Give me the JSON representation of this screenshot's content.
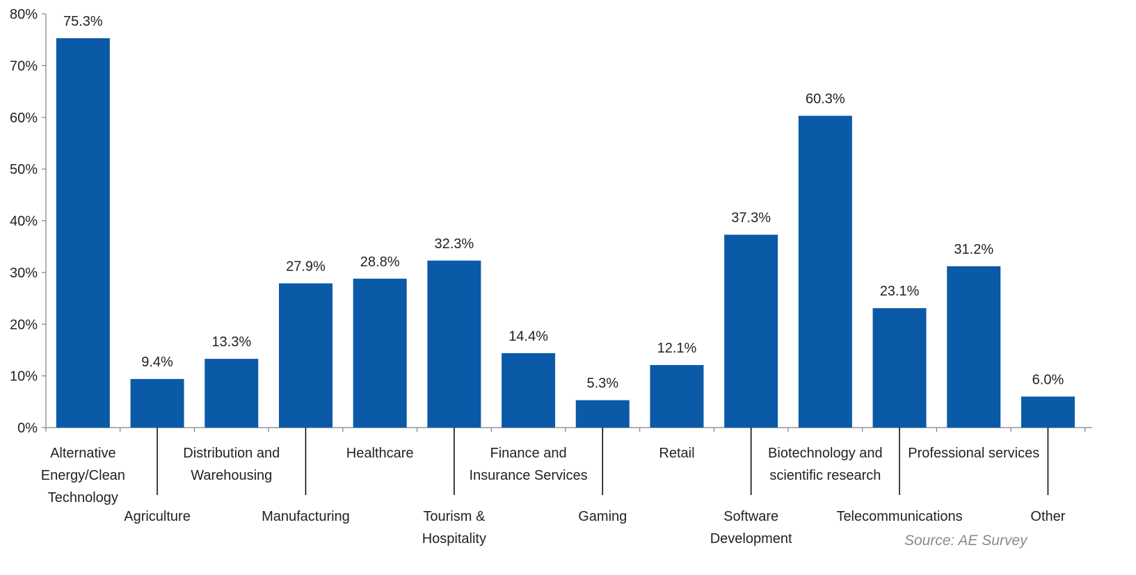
{
  "chart_data": {
    "type": "bar",
    "categories": [
      "Alternative Energy/Clean Technology",
      "Agriculture",
      "Distribution and Warehousing",
      "Manufacturing",
      "Healthcare",
      "Tourism & Hospitality",
      "Finance and Insurance Services",
      "Gaming",
      "Retail",
      "Software Development",
      "Biotechnology and scientific research",
      "Telecommunications",
      "Professional services",
      "Other"
    ],
    "label_lines": [
      [
        "Alternative",
        "Energy/Clean",
        "Technology"
      ],
      [
        "Agriculture"
      ],
      [
        "Distribution and",
        "Warehousing"
      ],
      [
        "Manufacturing"
      ],
      [
        "Healthcare"
      ],
      [
        "Tourism &",
        "Hospitality"
      ],
      [
        "Finance and",
        "Insurance Services"
      ],
      [
        "Gaming"
      ],
      [
        "Retail"
      ],
      [
        "Software",
        "Development"
      ],
      [
        "Biotechnology and",
        "scientific research"
      ],
      [
        "Telecommunications"
      ],
      [
        "Professional services"
      ],
      [
        "Other"
      ]
    ],
    "label_tiers": [
      "upper",
      "lower",
      "upper",
      "lower",
      "upper",
      "lower",
      "upper",
      "lower",
      "upper",
      "lower",
      "upper",
      "lower",
      "upper",
      "lower"
    ],
    "values": [
      75.3,
      9.4,
      13.3,
      27.9,
      28.8,
      32.3,
      14.4,
      5.3,
      12.1,
      37.3,
      60.3,
      23.1,
      31.2,
      6.0
    ],
    "data_labels": [
      "75.3%",
      "9.4%",
      "13.3%",
      "27.9%",
      "28.8%",
      "32.3%",
      "14.4%",
      "5.3%",
      "12.1%",
      "37.3%",
      "60.3%",
      "23.1%",
      "31.2%",
      "6.0%"
    ],
    "ylim": [
      0,
      80
    ],
    "yticks": [
      0,
      10,
      20,
      30,
      40,
      50,
      60,
      70,
      80
    ],
    "ytick_labels": [
      "0%",
      "10%",
      "20%",
      "30%",
      "40%",
      "50%",
      "60%",
      "70%",
      "80%"
    ],
    "title": "",
    "xlabel": "",
    "ylabel": "",
    "grid": false,
    "legend": "none",
    "bar_color": "#0a5aa8",
    "axis_color": "#808080",
    "text_color": "#222222"
  },
  "source_note": "Source: AE Survey"
}
